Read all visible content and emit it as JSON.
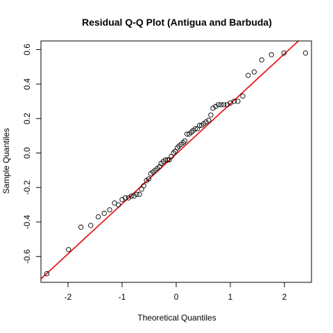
{
  "chart_data": {
    "type": "scatter",
    "title": "Residual Q-Q Plot (Antigua and Barbuda)",
    "xlabel": "Theoretical Quantiles",
    "ylabel": "Sample Quantiles",
    "xlim": [
      -2.5,
      2.5
    ],
    "ylim": [
      -0.75,
      0.65
    ],
    "x_ticks": [
      -2,
      -1,
      0,
      1,
      2
    ],
    "y_ticks": [
      -0.6,
      -0.4,
      -0.2,
      0.0,
      0.2,
      0.4,
      0.6
    ],
    "x_tick_labels": [
      "-2",
      "-1",
      "0",
      "1",
      "2"
    ],
    "y_tick_labels": [
      "-0.6",
      "-0.4",
      "-0.2",
      "0.0",
      "0.2",
      "0.4",
      "0.6"
    ],
    "grid": false,
    "legend": "none",
    "colors": {
      "points": "#000000",
      "reference_line": "#e41a1c"
    },
    "reference_line": {
      "intercept": -0.005,
      "slope": 0.29
    },
    "points": {
      "x": [
        -2.39,
        -1.99,
        -1.76,
        -1.58,
        -1.44,
        -1.33,
        -1.23,
        -1.14,
        -1.07,
        -1.0,
        -0.94,
        -0.88,
        -0.83,
        -0.78,
        -0.73,
        -0.68,
        -0.64,
        -0.6,
        -0.55,
        -0.51,
        -0.47,
        -0.43,
        -0.39,
        -0.35,
        -0.31,
        -0.28,
        -0.24,
        -0.2,
        -0.16,
        -0.13,
        -0.09,
        -0.05,
        -0.02,
        0.02,
        0.05,
        0.09,
        0.13,
        0.16,
        0.2,
        0.24,
        0.28,
        0.31,
        0.35,
        0.39,
        0.43,
        0.47,
        0.51,
        0.55,
        0.6,
        0.64,
        0.68,
        0.73,
        0.78,
        0.83,
        0.88,
        0.94,
        1.0,
        1.07,
        1.14,
        1.23,
        1.33,
        1.44,
        1.58,
        1.76,
        1.99,
        2.39
      ],
      "y": [
        -0.7,
        -0.56,
        -0.43,
        -0.42,
        -0.37,
        -0.35,
        -0.33,
        -0.29,
        -0.3,
        -0.27,
        -0.26,
        -0.26,
        -0.25,
        -0.25,
        -0.24,
        -0.24,
        -0.21,
        -0.19,
        -0.16,
        -0.15,
        -0.12,
        -0.11,
        -0.1,
        -0.09,
        -0.08,
        -0.06,
        -0.05,
        -0.04,
        -0.04,
        -0.04,
        -0.02,
        0.0,
        0.01,
        0.03,
        0.04,
        0.05,
        0.06,
        0.07,
        0.11,
        0.11,
        0.12,
        0.13,
        0.14,
        0.14,
        0.16,
        0.16,
        0.17,
        0.18,
        0.19,
        0.22,
        0.26,
        0.27,
        0.28,
        0.28,
        0.28,
        0.28,
        0.29,
        0.3,
        0.3,
        0.33,
        0.45,
        0.47,
        0.54,
        0.57,
        0.58,
        0.58
      ]
    }
  }
}
